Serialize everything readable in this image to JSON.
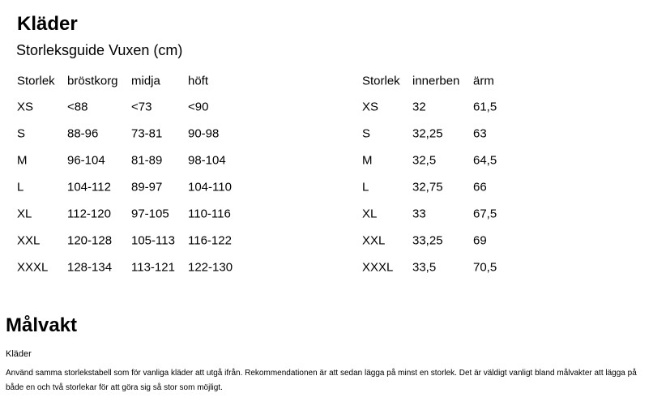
{
  "title": "Kläder",
  "subtitle": "Storleksguide Vuxen (cm)",
  "table_left": {
    "headers": [
      "Storlek",
      "bröstkorg",
      "midja",
      "höft"
    ],
    "rows": [
      [
        "XS",
        "<88",
        "<73",
        "<90"
      ],
      [
        "S",
        "88-96",
        "73-81",
        "90-98"
      ],
      [
        "M",
        "96-104",
        "81-89",
        "98-104"
      ],
      [
        "L",
        "104-112",
        "89-97",
        "104-110"
      ],
      [
        "XL",
        "112-120",
        "97-105",
        "110-116"
      ],
      [
        "XXL",
        "120-128",
        "105-113",
        "116-122"
      ],
      [
        "XXXL",
        "128-134",
        "113-121",
        "122-130"
      ]
    ]
  },
  "table_right": {
    "headers": [
      "Storlek",
      "innerben",
      "ärm"
    ],
    "rows": [
      [
        "XS",
        "32",
        "61,5"
      ],
      [
        "S",
        "32,25",
        "63"
      ],
      [
        "M",
        "32,5",
        "64,5"
      ],
      [
        "L",
        "32,75",
        "66"
      ],
      [
        "XL",
        "33",
        "67,5"
      ],
      [
        "XXL",
        "33,25",
        "69"
      ],
      [
        "XXXL",
        "33,5",
        "70,5"
      ]
    ]
  },
  "goalie": {
    "title": "Målvakt",
    "subheading": "Kläder",
    "text": "Använd samma storlekstabell som för vanliga kläder att utgå ifrån. Rekommendationen är att sedan lägga på minst en storlek. Det är väldigt vanligt bland målvakter att lägga på både en och två storlekar för att göra sig så stor som möjligt."
  }
}
